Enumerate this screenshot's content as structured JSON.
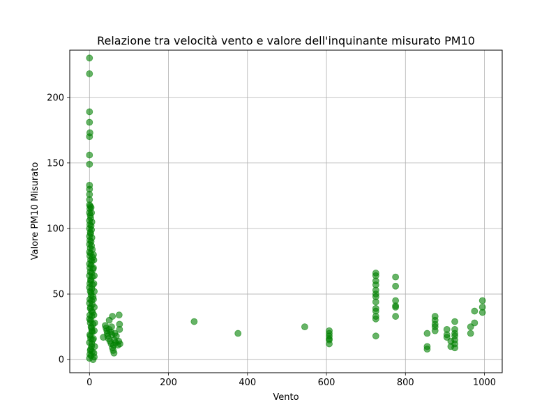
{
  "chart_data": {
    "type": "scatter",
    "title": "Relazione tra velocità vento e valore dell'inquinante misurato PM10",
    "xlabel": "Vento",
    "ylabel": "Valore PM10 Misurato",
    "xlim": [
      -50,
      1045
    ],
    "ylim": [
      -10,
      236
    ],
    "xticks": [
      0,
      200,
      400,
      600,
      800,
      1000
    ],
    "yticks": [
      0,
      50,
      100,
      150,
      200
    ],
    "grid": true,
    "marker_color": "#008000",
    "marker_alpha": 0.6,
    "points": [
      [
        0,
        230
      ],
      [
        0,
        218
      ],
      [
        0,
        189
      ],
      [
        0,
        181
      ],
      [
        1,
        173
      ],
      [
        0,
        170
      ],
      [
        0,
        156
      ],
      [
        0,
        149
      ],
      [
        0,
        133
      ],
      [
        0,
        130
      ],
      [
        0,
        126
      ],
      [
        0,
        122
      ],
      [
        0,
        118
      ],
      [
        1,
        115
      ],
      [
        0,
        112
      ],
      [
        2,
        110
      ],
      [
        0,
        106
      ],
      [
        1,
        103
      ],
      [
        0,
        100
      ],
      [
        2,
        97
      ],
      [
        0,
        94
      ],
      [
        1,
        91
      ],
      [
        0,
        88
      ],
      [
        2,
        85
      ],
      [
        0,
        82
      ],
      [
        1,
        79
      ],
      [
        3,
        76
      ],
      [
        0,
        73
      ],
      [
        1,
        70
      ],
      [
        2,
        67
      ],
      [
        0,
        64
      ],
      [
        3,
        61
      ],
      [
        1,
        58
      ],
      [
        0,
        55
      ],
      [
        2,
        52
      ],
      [
        4,
        49
      ],
      [
        1,
        46
      ],
      [
        0,
        43
      ],
      [
        3,
        40
      ],
      [
        5,
        37
      ],
      [
        1,
        34
      ],
      [
        0,
        31
      ],
      [
        2,
        28
      ],
      [
        4,
        25
      ],
      [
        6,
        22
      ],
      [
        1,
        19
      ],
      [
        3,
        16
      ],
      [
        0,
        13
      ],
      [
        5,
        10
      ],
      [
        2,
        7
      ],
      [
        1,
        4
      ],
      [
        0,
        1
      ],
      [
        4,
        3
      ],
      [
        7,
        6
      ],
      [
        3,
        8
      ],
      [
        6,
        12
      ],
      [
        8,
        15
      ],
      [
        2,
        18
      ],
      [
        7,
        21
      ],
      [
        5,
        24
      ],
      [
        9,
        27
      ],
      [
        3,
        30
      ],
      [
        6,
        33
      ],
      [
        8,
        36
      ],
      [
        2,
        39
      ],
      [
        7,
        42
      ],
      [
        5,
        45
      ],
      [
        9,
        48
      ],
      [
        4,
        51
      ],
      [
        6,
        54
      ],
      [
        8,
        57
      ],
      [
        3,
        60
      ],
      [
        7,
        63
      ],
      [
        5,
        66
      ],
      [
        9,
        69
      ],
      [
        4,
        72
      ],
      [
        6,
        75
      ],
      [
        8,
        78
      ],
      [
        3,
        81
      ],
      [
        7,
        84
      ],
      [
        5,
        87
      ],
      [
        4,
        90
      ],
      [
        6,
        93
      ],
      [
        3,
        96
      ],
      [
        5,
        99
      ],
      [
        4,
        102
      ],
      [
        6,
        105
      ],
      [
        3,
        108
      ],
      [
        5,
        112
      ],
      [
        4,
        116
      ],
      [
        2,
        117
      ],
      [
        10,
        80
      ],
      [
        11,
        76
      ],
      [
        10,
        70
      ],
      [
        12,
        64
      ],
      [
        11,
        58
      ],
      [
        12,
        52
      ],
      [
        10,
        46
      ],
      [
        12,
        40
      ],
      [
        11,
        34
      ],
      [
        13,
        28
      ],
      [
        12,
        22
      ],
      [
        10,
        16
      ],
      [
        13,
        10
      ],
      [
        11,
        5
      ],
      [
        12,
        2
      ],
      [
        9,
        0
      ],
      [
        35,
        17
      ],
      [
        40,
        26
      ],
      [
        42,
        24
      ],
      [
        44,
        22
      ],
      [
        45,
        20
      ],
      [
        46,
        18
      ],
      [
        48,
        16
      ],
      [
        50,
        23
      ],
      [
        50,
        30
      ],
      [
        52,
        14
      ],
      [
        54,
        21
      ],
      [
        55,
        12
      ],
      [
        56,
        25
      ],
      [
        57,
        19
      ],
      [
        58,
        33
      ],
      [
        58,
        9
      ],
      [
        60,
        7
      ],
      [
        61,
        11
      ],
      [
        62,
        5
      ],
      [
        63,
        15
      ],
      [
        64,
        20
      ],
      [
        66,
        13
      ],
      [
        68,
        18
      ],
      [
        72,
        11
      ],
      [
        74,
        14
      ],
      [
        75,
        34
      ],
      [
        76,
        23
      ],
      [
        76,
        27
      ],
      [
        77,
        12
      ],
      [
        265,
        29
      ],
      [
        376,
        20
      ],
      [
        545,
        25
      ],
      [
        607,
        22
      ],
      [
        607,
        20
      ],
      [
        607,
        18
      ],
      [
        607,
        16
      ],
      [
        607,
        15
      ],
      [
        607,
        12
      ],
      [
        725,
        66
      ],
      [
        725,
        64
      ],
      [
        725,
        60
      ],
      [
        725,
        57
      ],
      [
        725,
        53
      ],
      [
        725,
        50
      ],
      [
        725,
        48
      ],
      [
        725,
        44
      ],
      [
        725,
        39
      ],
      [
        725,
        37
      ],
      [
        725,
        33
      ],
      [
        725,
        31
      ],
      [
        725,
        18
      ],
      [
        775,
        63
      ],
      [
        775,
        56
      ],
      [
        775,
        45
      ],
      [
        775,
        41
      ],
      [
        775,
        40
      ],
      [
        775,
        33
      ],
      [
        855,
        20
      ],
      [
        855,
        10
      ],
      [
        855,
        8
      ],
      [
        875,
        33
      ],
      [
        875,
        30
      ],
      [
        875,
        27
      ],
      [
        875,
        25
      ],
      [
        875,
        22
      ],
      [
        905,
        23
      ],
      [
        905,
        19
      ],
      [
        905,
        17
      ],
      [
        915,
        14
      ],
      [
        915,
        10
      ],
      [
        925,
        29
      ],
      [
        925,
        23
      ],
      [
        925,
        20
      ],
      [
        925,
        18
      ],
      [
        925,
        15
      ],
      [
        925,
        12
      ],
      [
        925,
        9
      ],
      [
        965,
        25
      ],
      [
        965,
        20
      ],
      [
        975,
        37
      ],
      [
        975,
        28
      ],
      [
        995,
        45
      ],
      [
        995,
        40
      ],
      [
        995,
        36
      ]
    ]
  }
}
